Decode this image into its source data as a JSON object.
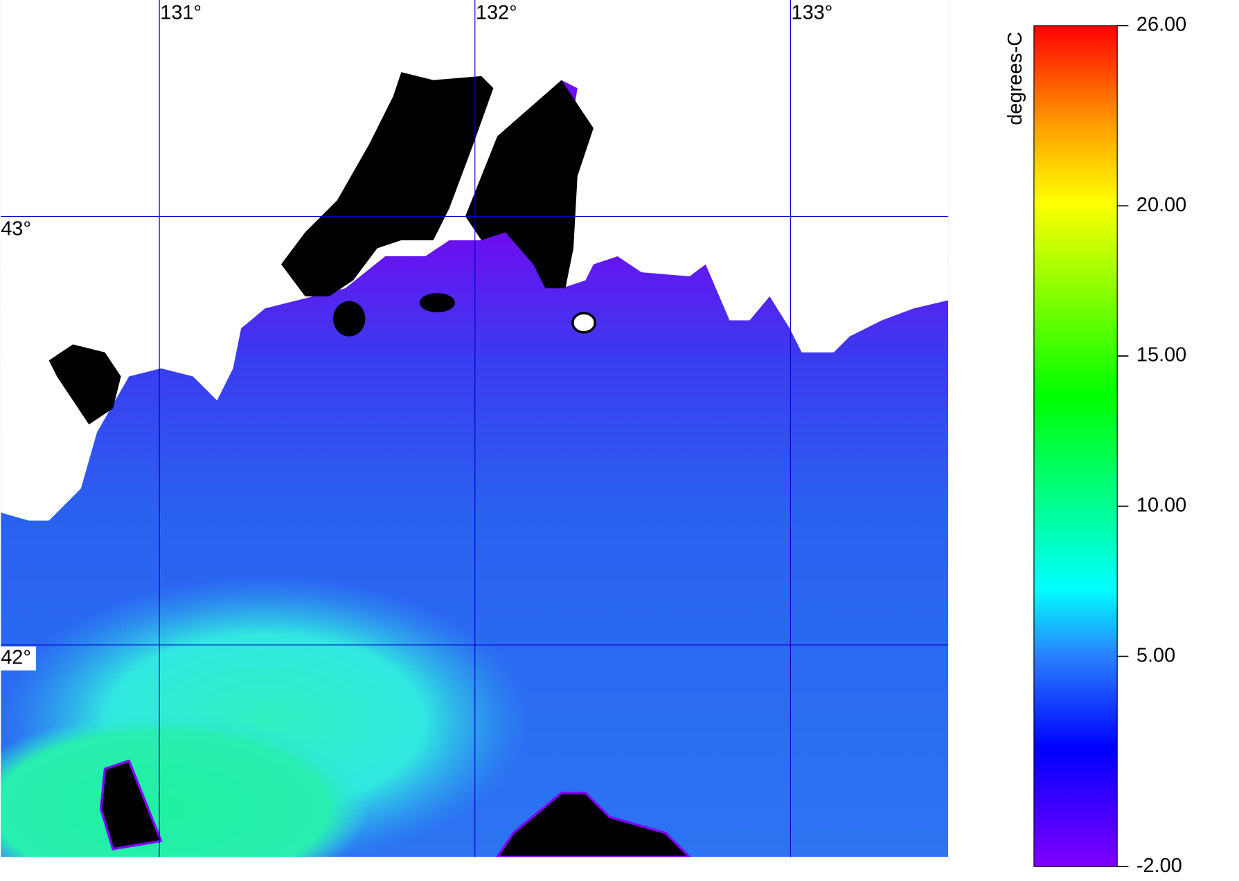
{
  "map": {
    "xlim": [
      130.4975,
      133.5
    ],
    "ylim": [
      41.505,
      43.505
    ],
    "lon_ticks": [
      {
        "value": 131,
        "label": "131°"
      },
      {
        "value": 132,
        "label": "132°"
      },
      {
        "value": 133,
        "label": "133°"
      }
    ],
    "lat_ticks": [
      {
        "value": 43,
        "label": "43°"
      },
      {
        "value": 42,
        "label": "42°"
      }
    ],
    "grid_color": "#0000cc"
  },
  "colorbar": {
    "label": "degrees-C",
    "lim": [
      -2,
      26
    ],
    "ticks": [
      {
        "value": 26,
        "label": "26.00"
      },
      {
        "value": 20,
        "label": "20.00"
      },
      {
        "value": 15,
        "label": "15.00"
      },
      {
        "value": 10,
        "label": "10.00"
      },
      {
        "value": 5,
        "label": "5.00"
      },
      {
        "value": -2,
        "label": "-2.00"
      }
    ]
  }
}
